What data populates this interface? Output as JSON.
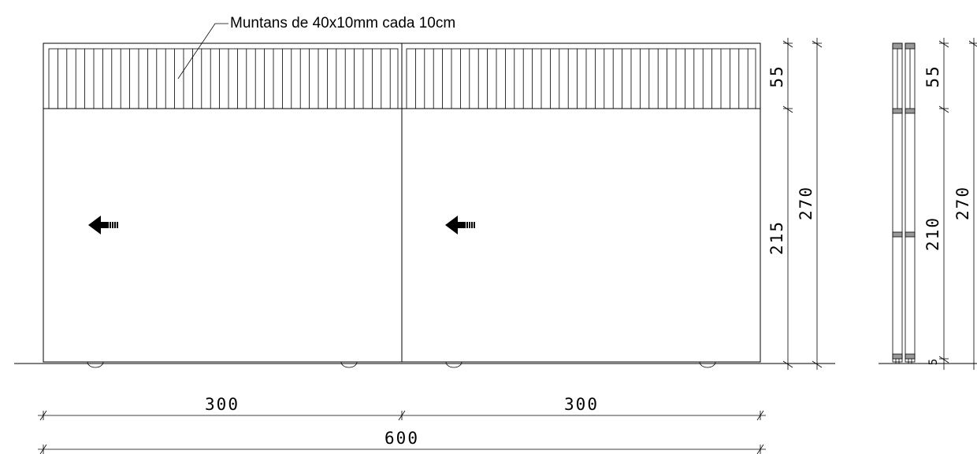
{
  "annotation": {
    "muntins_label": "Muntans de 40x10mm cada 10cm"
  },
  "front_elevation": {
    "dim_top_panel": "55",
    "dim_door_leaf": "215",
    "dim_total_height": "270",
    "dim_left_width": "300",
    "dim_right_width": "300",
    "dim_total_width": "600"
  },
  "side_section": {
    "dim_top_panel": "55",
    "dim_door_leaf": "210",
    "dim_bottom": "5",
    "dim_total_height": "270"
  },
  "colors": {
    "line": "#000000",
    "hatch_fill": "#999999",
    "background": "#ffffff"
  }
}
